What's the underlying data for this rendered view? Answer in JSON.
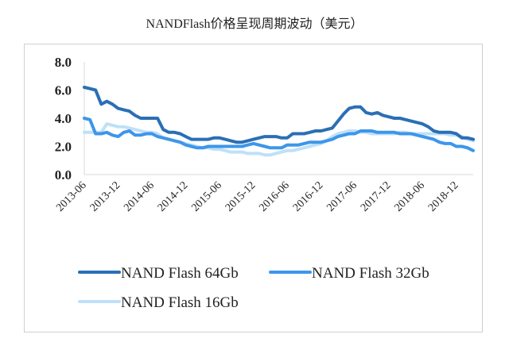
{
  "chart_data": {
    "type": "line",
    "title": "NANDFlash价格呈现周期波动（美元）",
    "xlabel": "",
    "ylabel": "",
    "ylim": [
      0,
      8
    ],
    "yticks": [
      "0.0",
      "2.0",
      "4.0",
      "6.0",
      "8.0"
    ],
    "xticks": [
      "2013-06",
      "2013-12",
      "2014-06",
      "2014-12",
      "2015-06",
      "2015-12",
      "2016-06",
      "2016-12",
      "2017-06",
      "2017-12",
      "2018-06",
      "2018-12"
    ],
    "grid": false,
    "legend_position": "bottom",
    "x": [
      "2013-06",
      "2013-07",
      "2013-08",
      "2013-09",
      "2013-10",
      "2013-11",
      "2013-12",
      "2014-01",
      "2014-02",
      "2014-03",
      "2014-04",
      "2014-05",
      "2014-06",
      "2014-07",
      "2014-08",
      "2014-09",
      "2014-10",
      "2014-11",
      "2014-12",
      "2015-01",
      "2015-02",
      "2015-03",
      "2015-04",
      "2015-05",
      "2015-06",
      "2015-07",
      "2015-08",
      "2015-09",
      "2015-10",
      "2015-11",
      "2015-12",
      "2016-01",
      "2016-02",
      "2016-03",
      "2016-04",
      "2016-05",
      "2016-06",
      "2016-07",
      "2016-08",
      "2016-09",
      "2016-10",
      "2016-11",
      "2016-12",
      "2017-01",
      "2017-02",
      "2017-03",
      "2017-04",
      "2017-05",
      "2017-06",
      "2017-07",
      "2017-08",
      "2017-09",
      "2017-10",
      "2017-11",
      "2017-12",
      "2018-01",
      "2018-02",
      "2018-03",
      "2018-04",
      "2018-05",
      "2018-06",
      "2018-07",
      "2018-08",
      "2018-09",
      "2018-10",
      "2018-11",
      "2018-12",
      "2019-01",
      "2019-02",
      "2019-03"
    ],
    "series": [
      {
        "name": "NAND Flash 64Gb",
        "color": "#2a6fb5",
        "values": [
          6.2,
          6.1,
          6.0,
          5.0,
          5.2,
          5.0,
          4.7,
          4.6,
          4.5,
          4.2,
          4.0,
          4.0,
          4.0,
          4.0,
          3.2,
          3.0,
          3.0,
          2.9,
          2.7,
          2.5,
          2.5,
          2.5,
          2.5,
          2.6,
          2.6,
          2.5,
          2.4,
          2.3,
          2.3,
          2.4,
          2.5,
          2.6,
          2.7,
          2.7,
          2.7,
          2.6,
          2.6,
          2.9,
          2.9,
          2.9,
          3.0,
          3.1,
          3.1,
          3.2,
          3.3,
          3.8,
          4.3,
          4.7,
          4.8,
          4.8,
          4.4,
          4.3,
          4.4,
          4.2,
          4.1,
          4.0,
          4.0,
          3.9,
          3.8,
          3.7,
          3.6,
          3.4,
          3.1,
          3.0,
          3.0,
          3.0,
          2.9,
          2.6,
          2.6,
          2.5
        ]
      },
      {
        "name": "NAND Flash 32Gb",
        "color": "#3d96ea",
        "values": [
          4.0,
          3.9,
          2.9,
          2.9,
          3.0,
          2.8,
          2.7,
          3.0,
          3.1,
          2.8,
          2.8,
          2.9,
          2.9,
          2.7,
          2.6,
          2.5,
          2.4,
          2.3,
          2.1,
          2.0,
          1.9,
          1.9,
          2.0,
          2.0,
          2.0,
          2.0,
          2.0,
          2.0,
          2.0,
          2.1,
          2.2,
          2.1,
          2.0,
          1.9,
          1.9,
          1.9,
          2.1,
          2.1,
          2.1,
          2.2,
          2.3,
          2.3,
          2.3,
          2.4,
          2.5,
          2.7,
          2.8,
          2.9,
          2.9,
          3.1,
          3.1,
          3.1,
          3.0,
          3.0,
          3.0,
          3.0,
          2.9,
          2.9,
          2.9,
          2.8,
          2.7,
          2.6,
          2.5,
          2.3,
          2.2,
          2.2,
          2.0,
          2.0,
          1.9,
          1.7
        ]
      },
      {
        "name": "NAND Flash 16Gb",
        "color": "#bfe0f8",
        "values": [
          3.0,
          3.0,
          3.0,
          3.0,
          3.6,
          3.5,
          3.4,
          3.4,
          3.3,
          3.2,
          3.1,
          3.0,
          3.0,
          2.9,
          2.6,
          2.5,
          2.4,
          2.3,
          2.2,
          2.1,
          2.0,
          1.9,
          1.9,
          1.8,
          1.8,
          1.7,
          1.6,
          1.6,
          1.6,
          1.5,
          1.5,
          1.5,
          1.4,
          1.4,
          1.5,
          1.6,
          1.7,
          1.7,
          1.8,
          1.9,
          2.0,
          2.1,
          2.2,
          2.4,
          2.7,
          2.9,
          3.0,
          3.1,
          3.1,
          3.0,
          3.0,
          2.9,
          2.9,
          2.9,
          2.9,
          2.9,
          3.0,
          3.0,
          2.9,
          2.9,
          2.9,
          2.9,
          2.9,
          2.9,
          2.9,
          2.8,
          2.8,
          2.7,
          2.5,
          2.4
        ]
      }
    ]
  }
}
